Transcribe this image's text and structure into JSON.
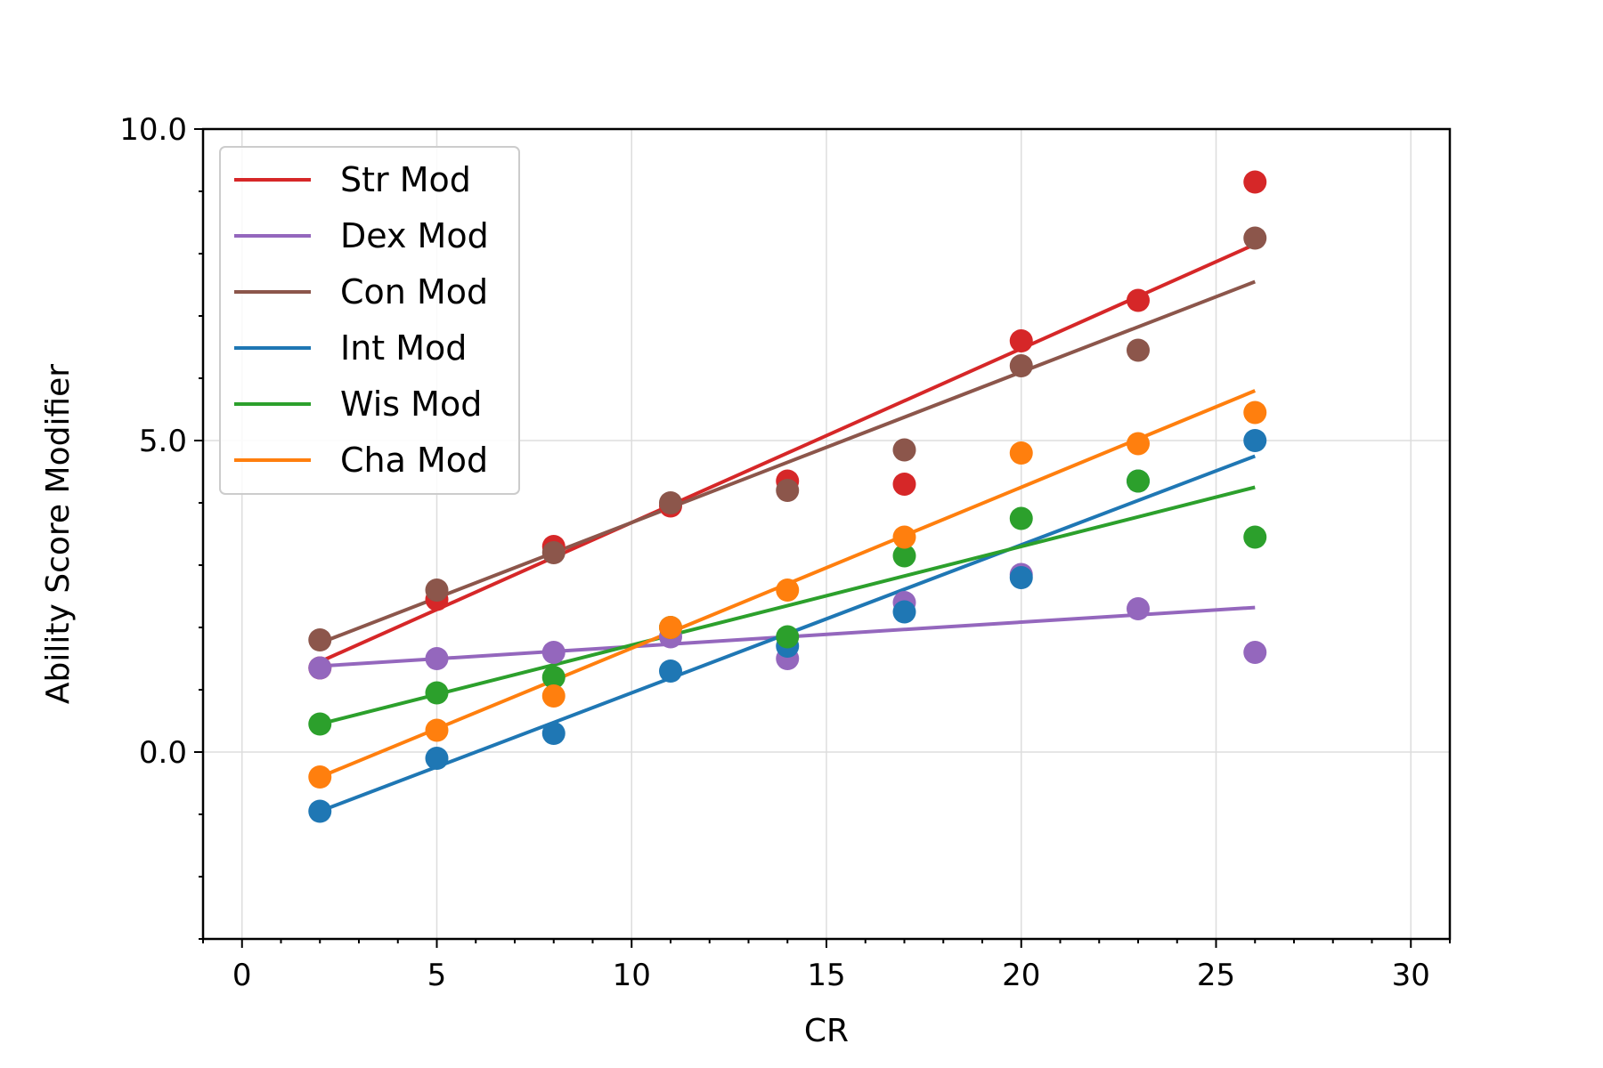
{
  "chart_data": {
    "type": "scatter",
    "xlabel": "CR",
    "ylabel": "Ability Score Modifier",
    "xlim": [
      -1,
      31
    ],
    "ylim": [
      -3,
      10
    ],
    "grid": true,
    "legend_position": "upper-left",
    "x_ticks": [
      0,
      5,
      10,
      15,
      20,
      25,
      30
    ],
    "x_tick_labels": [
      "0",
      "5",
      "10",
      "15",
      "20",
      "25",
      "30"
    ],
    "y_ticks": [
      0,
      5,
      10
    ],
    "y_tick_labels": [
      "0.0",
      "5.0",
      "10.0"
    ],
    "x_minor_step": 1,
    "y_minor_step": 1,
    "x": [
      2,
      5,
      8,
      11,
      14,
      17,
      20,
      23,
      26
    ],
    "series": [
      {
        "name": "Str Mod",
        "color": "#d62728",
        "values": [
          1.35,
          2.45,
          3.3,
          3.95,
          4.35,
          4.3,
          6.6,
          7.25,
          9.15
        ],
        "fit": [
          1.45,
          8.15
        ]
      },
      {
        "name": "Dex Mod",
        "color": "#9467bd",
        "values": [
          1.35,
          1.5,
          1.6,
          1.85,
          1.5,
          2.4,
          2.85,
          2.3,
          1.6
        ],
        "fit": [
          1.38,
          2.32
        ]
      },
      {
        "name": "Con Mod",
        "color": "#8c564b",
        "values": [
          1.8,
          2.6,
          3.2,
          4.0,
          4.2,
          4.85,
          6.2,
          6.45,
          8.25
        ],
        "fit": [
          1.75,
          7.55
        ]
      },
      {
        "name": "Int Mod",
        "color": "#1f77b4",
        "values": [
          -0.95,
          -0.1,
          0.3,
          1.3,
          1.7,
          2.25,
          2.8,
          4.35,
          5.0
        ],
        "fit": [
          -0.95,
          4.75
        ]
      },
      {
        "name": "Wis Mod",
        "color": "#2ca02c",
        "values": [
          0.45,
          0.95,
          1.2,
          2.0,
          1.85,
          3.15,
          3.75,
          4.35,
          3.45
        ],
        "fit": [
          0.45,
          4.25
        ]
      },
      {
        "name": "Cha Mod",
        "color": "#ff7f0e",
        "values": [
          -0.4,
          0.35,
          0.9,
          2.0,
          2.6,
          3.45,
          4.8,
          4.95,
          5.45
        ],
        "fit": [
          -0.4,
          5.8
        ]
      }
    ]
  }
}
